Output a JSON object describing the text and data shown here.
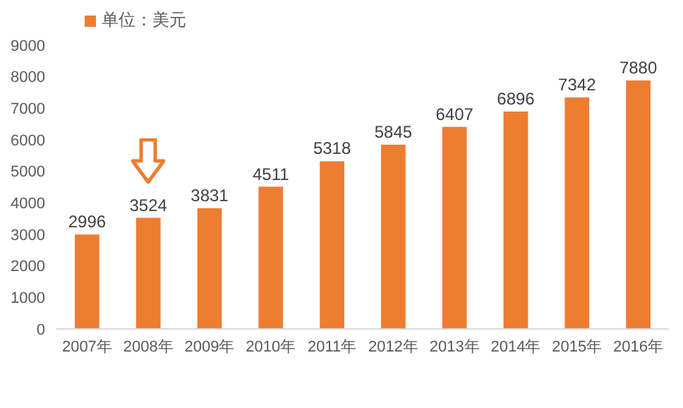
{
  "chart_data": {
    "type": "bar",
    "categories": [
      "2007年",
      "2008年",
      "2009年",
      "2010年",
      "2011年",
      "2012年",
      "2013年",
      "2014年",
      "2015年",
      "2016年"
    ],
    "series": [
      {
        "name": "单位：美元",
        "color": "#ed7d31",
        "values": [
          2996,
          3524,
          3831,
          4511,
          5318,
          5845,
          6407,
          6896,
          7342,
          7880
        ]
      }
    ],
    "ylim": [
      0,
      9000
    ],
    "yticks": [
      0,
      1000,
      2000,
      3000,
      4000,
      5000,
      6000,
      7000,
      8000,
      9000
    ],
    "grid": false,
    "legend": "top left",
    "data_labels": true
  }
}
